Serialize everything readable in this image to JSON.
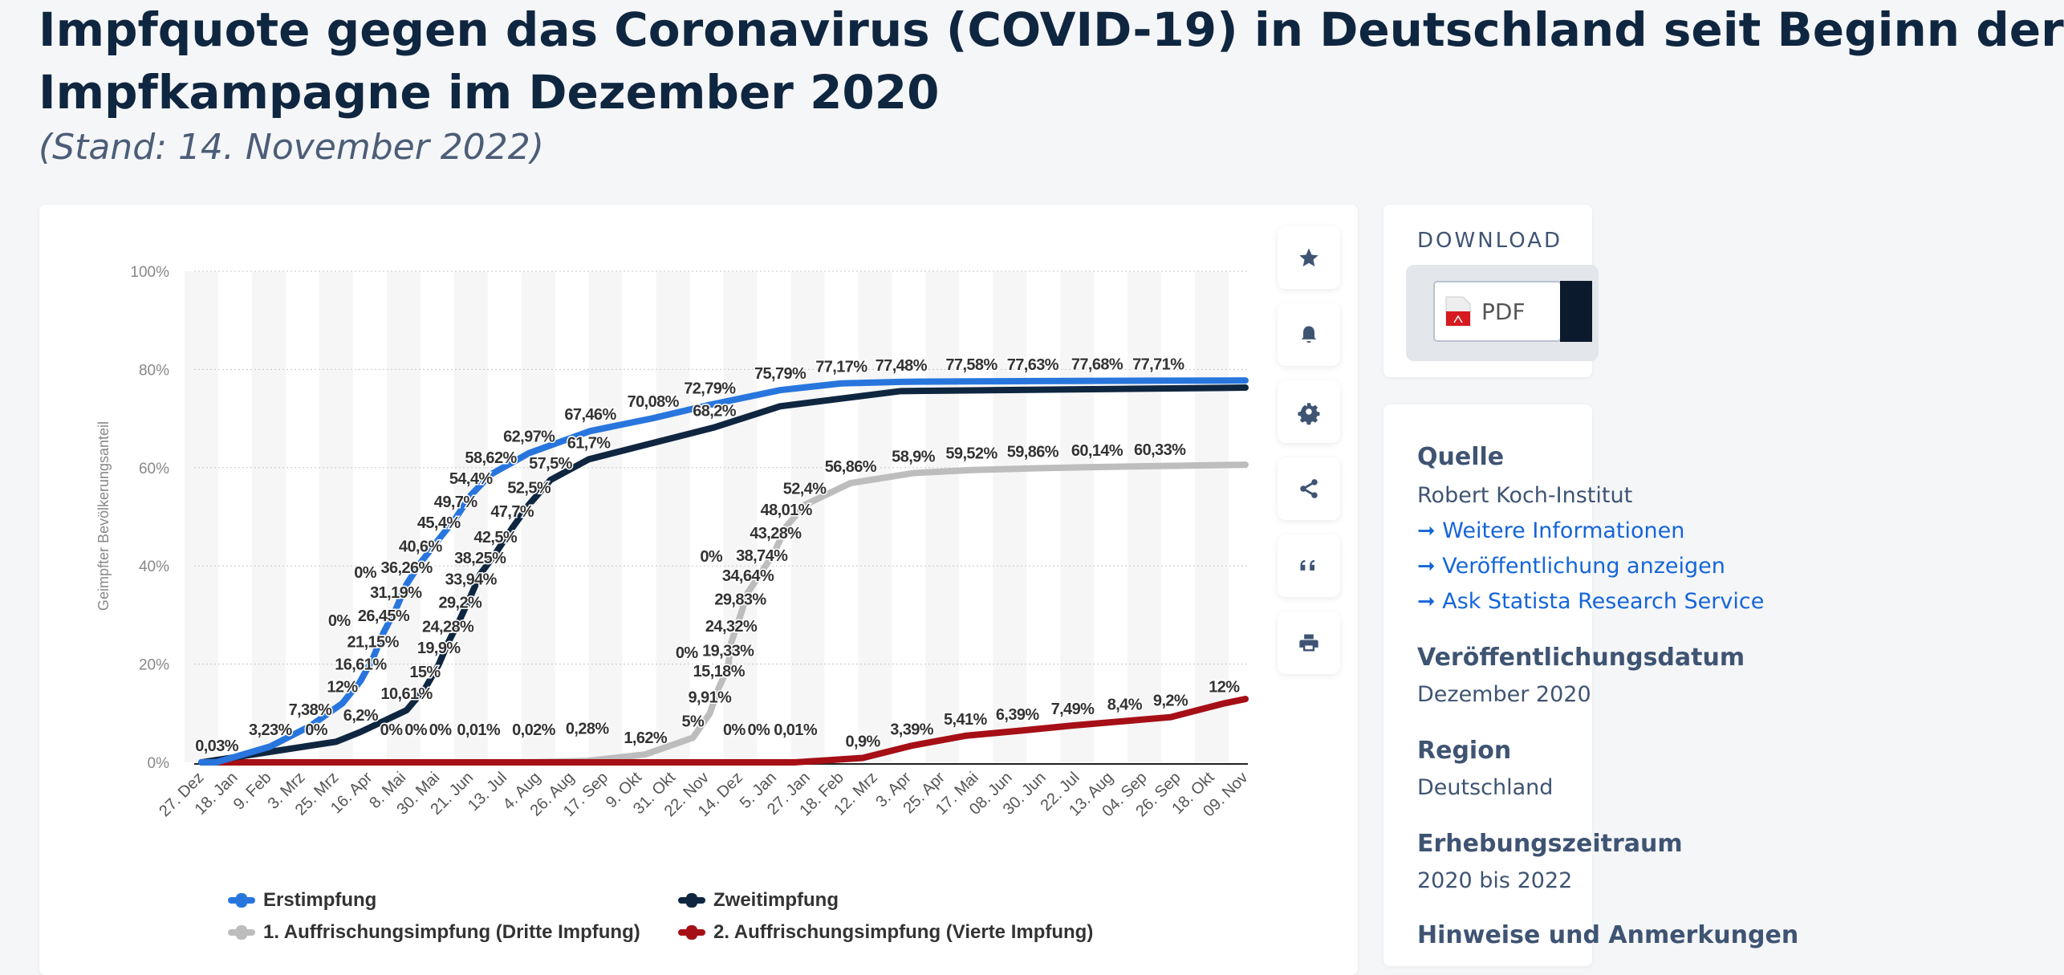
{
  "header": {
    "title_line1": "Impfquote gegen das Coronavirus (COVID-19) in Deutschland seit Beginn der",
    "title_line2": "Impfkampagne im Dezember 2020",
    "subtitle": "(Stand: 14. November 2022)"
  },
  "toolbar": {
    "icons": [
      "star-icon",
      "bell-icon",
      "gear-icon",
      "share-icon",
      "quote-icon",
      "print-icon"
    ]
  },
  "download": {
    "heading": "DOWNLOAD",
    "pdf_label": "PDF"
  },
  "info": {
    "source_heading": "Quelle",
    "source_value": "Robert Koch-Institut",
    "links": [
      "Weitere Informationen",
      "Veröffentlichung anzeigen",
      "Ask Statista Research Service"
    ],
    "published_heading": "Veröffentlichungsdatum",
    "published_value": "Dezember 2020",
    "region_heading": "Region",
    "region_value": "Deutschland",
    "survey_heading": "Erhebungszeitraum",
    "survey_value": "2020 bis 2022",
    "notes_heading": "Hinweise und Anmerkungen"
  },
  "chart_data": {
    "type": "line",
    "ylabel": "Geimpfter Bevölkerungsanteil",
    "ylim": [
      0,
      100
    ],
    "y_ticks": [
      "0%",
      "20%",
      "40%",
      "60%",
      "80%",
      "100%"
    ],
    "x_range": [
      "2020-12-27",
      "2022-11-09"
    ],
    "x_ticks": [
      "27. Dez",
      "18. Jan",
      "9. Feb",
      "3. Mrz",
      "25. Mrz",
      "16. Apr",
      "8. Mai",
      "30. Mai",
      "21. Jun",
      "13. Jul",
      "4. Aug",
      "26. Aug",
      "17. Sep",
      "9. Okt",
      "31. Okt",
      "22. Nov",
      "14. Dez",
      "5. Jan",
      "27. Jan",
      "18. Feb",
      "12. Mrz",
      "3. Apr",
      "25. Apr",
      "17. Mai",
      "08. Jun",
      "30. Jun",
      "22. Jul",
      "13. Aug",
      "04. Sep",
      "26. Sep",
      "18. Okt",
      "09. Nov"
    ],
    "grid": true,
    "legend_position": "bottom",
    "series": [
      {
        "name": "Erstimpfung",
        "color": "#2876dd",
        "points": [
          {
            "d": "2020-12-27",
            "v": 0
          },
          {
            "d": "2021-01-06",
            "v": 0.03,
            "l": "0,03%"
          },
          {
            "d": "2021-02-10",
            "v": 3.23,
            "l": "3,23%"
          },
          {
            "d": "2021-03-08",
            "v": 7.38,
            "l": "7,38%"
          },
          {
            "d": "2021-03-29",
            "v": 12,
            "l": "12%"
          },
          {
            "d": "2021-04-10",
            "v": 16.61,
            "l": "16,61%"
          },
          {
            "d": "2021-04-18",
            "v": 21.15,
            "l": "21,15%"
          },
          {
            "d": "2021-04-25",
            "v": 26.45,
            "l": "26,45%"
          },
          {
            "d": "2021-05-03",
            "v": 31.19,
            "l": "31,19%"
          },
          {
            "d": "2021-05-10",
            "v": 36.26,
            "l": "36,26%"
          },
          {
            "d": "2021-05-19",
            "v": 40.6,
            "l": "40,6%"
          },
          {
            "d": "2021-05-31",
            "v": 45.4,
            "l": "45,4%"
          },
          {
            "d": "2021-06-11",
            "v": 49.7,
            "l": "49,7%"
          },
          {
            "d": "2021-06-21",
            "v": 54.4,
            "l": "54,4%"
          },
          {
            "d": "2021-07-04",
            "v": 58.62,
            "l": "58,62%"
          },
          {
            "d": "2021-07-29",
            "v": 62.97,
            "l": "62,97%"
          },
          {
            "d": "2021-09-07",
            "v": 67.46,
            "l": "67,46%"
          },
          {
            "d": "2021-10-18",
            "v": 70.08,
            "l": "70,08%"
          },
          {
            "d": "2021-11-24",
            "v": 72.79,
            "l": "72,79%"
          },
          {
            "d": "2022-01-09",
            "v": 75.79,
            "l": "75,79%"
          },
          {
            "d": "2022-02-18",
            "v": 77.17,
            "l": "77,17%"
          },
          {
            "d": "2022-03-29",
            "v": 77.48,
            "l": "77,48%"
          },
          {
            "d": "2022-05-14",
            "v": 77.58,
            "l": "77,58%"
          },
          {
            "d": "2022-06-23",
            "v": 77.63,
            "l": "77,63%"
          },
          {
            "d": "2022-08-04",
            "v": 77.68,
            "l": "77,68%"
          },
          {
            "d": "2022-09-13",
            "v": 77.71,
            "l": "77,71%"
          },
          {
            "d": "2022-11-09",
            "v": 77.75
          }
        ]
      },
      {
        "name": "Zweitimpfung",
        "color": "#0f2640",
        "points": [
          {
            "d": "2020-12-27",
            "v": 0
          },
          {
            "d": "2021-03-25",
            "v": 4.2
          },
          {
            "d": "2021-04-10",
            "v": 6.2,
            "l": "6,2%"
          },
          {
            "d": "2021-05-10",
            "v": 10.61,
            "l": "10,61%"
          },
          {
            "d": "2021-05-22",
            "v": 15,
            "l": "15%"
          },
          {
            "d": "2021-05-31",
            "v": 19.9,
            "l": "19,9%"
          },
          {
            "d": "2021-06-06",
            "v": 24.28,
            "l": "24,28%"
          },
          {
            "d": "2021-06-14",
            "v": 29.2,
            "l": "29,2%"
          },
          {
            "d": "2021-06-21",
            "v": 33.94,
            "l": "33,94%"
          },
          {
            "d": "2021-06-27",
            "v": 38.25,
            "l": "38,25%"
          },
          {
            "d": "2021-07-07",
            "v": 42.5,
            "l": "42,5%"
          },
          {
            "d": "2021-07-18",
            "v": 47.7,
            "l": "47,7%"
          },
          {
            "d": "2021-07-29",
            "v": 52.5,
            "l": "52,5%"
          },
          {
            "d": "2021-08-12",
            "v": 57.5,
            "l": "57,5%"
          },
          {
            "d": "2021-09-06",
            "v": 61.7,
            "l": "61,7%"
          },
          {
            "d": "2021-11-27",
            "v": 68.2,
            "l": "68,2%"
          },
          {
            "d": "2022-01-09",
            "v": 72.5
          },
          {
            "d": "2022-03-29",
            "v": 75.6
          },
          {
            "d": "2022-11-09",
            "v": 76.3
          }
        ]
      },
      {
        "name": "1. Auffrischungsimpfung (Dritte Impfung)",
        "color": "#bdbdbd",
        "points": [
          {
            "d": "2020-12-27",
            "v": 0
          },
          {
            "d": "2021-03-12",
            "v": 0,
            "l": "0%"
          },
          {
            "d": "2021-03-27",
            "v": 0,
            "l": "0%"
          },
          {
            "d": "2021-04-13",
            "v": 0,
            "l": "0%"
          },
          {
            "d": "2021-04-30",
            "v": 0,
            "l": "0%"
          },
          {
            "d": "2021-05-16",
            "v": 0,
            "l": "0%"
          },
          {
            "d": "2021-06-01",
            "v": 0,
            "l": "0%"
          },
          {
            "d": "2021-06-26",
            "v": 0.01,
            "l": "0,01%"
          },
          {
            "d": "2021-08-01",
            "v": 0.02,
            "l": "0,02%"
          },
          {
            "d": "2021-09-05",
            "v": 0.28,
            "l": "0,28%"
          },
          {
            "d": "2021-10-13",
            "v": 1.62,
            "l": "1,62%"
          },
          {
            "d": "2021-11-13",
            "v": 5,
            "l": "5%"
          },
          {
            "d": "2021-11-24",
            "v": 9.91,
            "l": "9,91%"
          },
          {
            "d": "2021-11-30",
            "v": 15.18,
            "l": "15,18%"
          },
          {
            "d": "2021-12-06",
            "v": 19.33,
            "l": "19,33%"
          },
          {
            "d": "2021-12-08",
            "v": 24.32,
            "l": "24,32%"
          },
          {
            "d": "2021-12-14",
            "v": 29.83,
            "l": "29,83%"
          },
          {
            "d": "2021-12-19",
            "v": 34.64,
            "l": "34,64%"
          },
          {
            "d": "2021-12-28",
            "v": 38.74,
            "l": "38,74%"
          },
          {
            "d": "2022-01-06",
            "v": 43.28,
            "l": "43,28%"
          },
          {
            "d": "2022-01-13",
            "v": 48.01,
            "l": "48,01%"
          },
          {
            "d": "2022-01-25",
            "v": 52.4,
            "l": "52,4%"
          },
          {
            "d": "2022-02-24",
            "v": 56.86,
            "l": "56,86%"
          },
          {
            "d": "2022-04-06",
            "v": 58.9,
            "l": "58,9%"
          },
          {
            "d": "2022-05-14",
            "v": 59.52,
            "l": "59,52%"
          },
          {
            "d": "2022-06-23",
            "v": 59.86,
            "l": "59,86%"
          },
          {
            "d": "2022-08-04",
            "v": 60.14,
            "l": "60,14%"
          },
          {
            "d": "2022-09-14",
            "v": 60.33,
            "l": "60,33%"
          },
          {
            "d": "2022-11-09",
            "v": 60.6
          }
        ]
      },
      {
        "name": "2. Auffrischungsimpfung (Vierte Impfung)",
        "color": "#a50f15",
        "points": [
          {
            "d": "2020-12-27",
            "v": 0
          },
          {
            "d": "2021-11-09",
            "v": 0,
            "l": "0%"
          },
          {
            "d": "2021-11-25",
            "v": 0,
            "l": "0%"
          },
          {
            "d": "2021-12-10",
            "v": 0,
            "l": "0%"
          },
          {
            "d": "2021-12-26",
            "v": 0,
            "l": "0%"
          },
          {
            "d": "2022-01-19",
            "v": 0.01,
            "l": "0,01%"
          },
          {
            "d": "2022-03-04",
            "v": 0.9,
            "l": "0,9%"
          },
          {
            "d": "2022-04-05",
            "v": 3.39,
            "l": "3,39%"
          },
          {
            "d": "2022-05-10",
            "v": 5.41,
            "l": "5,41%"
          },
          {
            "d": "2022-06-13",
            "v": 6.39,
            "l": "6,39%"
          },
          {
            "d": "2022-07-19",
            "v": 7.49,
            "l": "7,49%"
          },
          {
            "d": "2022-08-22",
            "v": 8.4,
            "l": "8,4%"
          },
          {
            "d": "2022-09-21",
            "v": 9.2,
            "l": "9,2%"
          },
          {
            "d": "2022-10-26",
            "v": 12,
            "l": "12%"
          },
          {
            "d": "2022-11-09",
            "v": 12.9
          }
        ]
      }
    ]
  }
}
